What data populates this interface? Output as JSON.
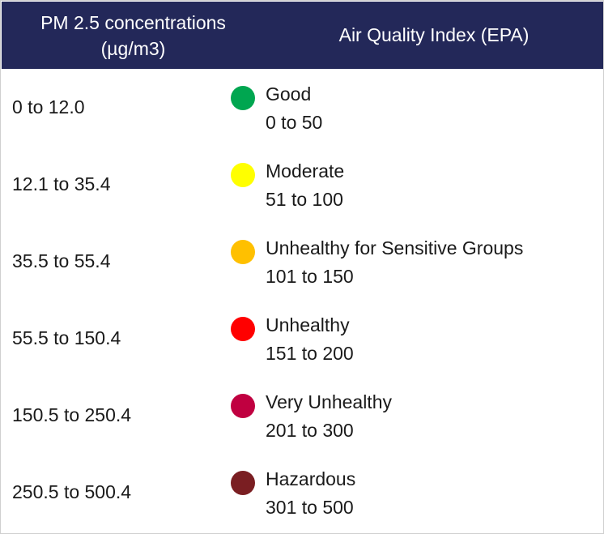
{
  "header": {
    "pm_line1": "PM 2.5 concentrations",
    "pm_line2": "(µg/m3)",
    "aqi_title": "Air Quality Index (EPA)"
  },
  "rows": [
    {
      "pm_range": "0 to 12.0",
      "category": "Good",
      "aqi_range": "0 to 50",
      "color": "#00a650"
    },
    {
      "pm_range": "12.1 to 35.4",
      "category": "Moderate",
      "aqi_range": "51 to 100",
      "color": "#ffff00"
    },
    {
      "pm_range": "35.5 to 55.4",
      "category": "Unhealthy for Sensitive Groups",
      "aqi_range": "101 to 150",
      "color": "#ffc000"
    },
    {
      "pm_range": "55.5 to 150.4",
      "category": "Unhealthy",
      "aqi_range": "151 to 200",
      "color": "#ff0000"
    },
    {
      "pm_range": "150.5 to 250.4",
      "category": "Very Unhealthy",
      "aqi_range": "201 to 300",
      "color": "#c00040"
    },
    {
      "pm_range": "250.5 to 500.4",
      "category": "Hazardous",
      "aqi_range": "301 to 500",
      "color": "#7a1e22"
    }
  ]
}
